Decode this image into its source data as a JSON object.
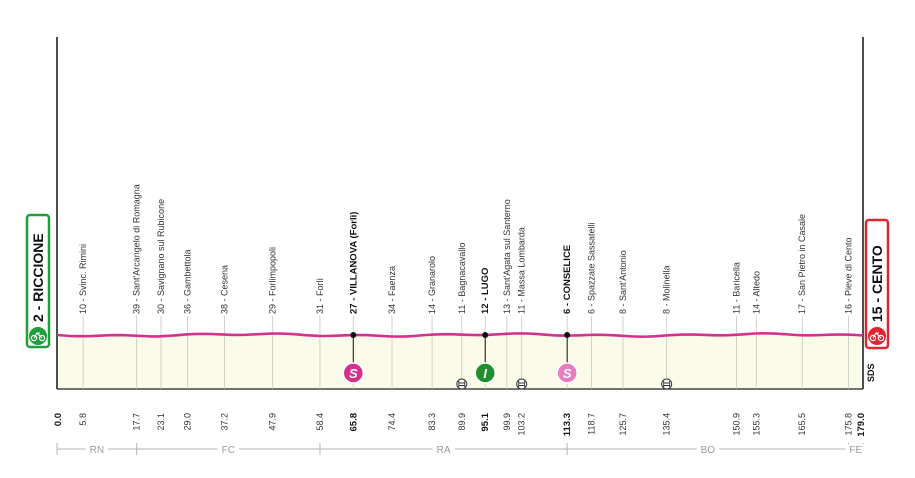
{
  "chart_data": {
    "type": "area",
    "x_unit": "km",
    "total_km": 179.0,
    "start": {
      "name": "2 - RICCIONE",
      "km": "0.0"
    },
    "finish": {
      "name": "15 - CENTO",
      "km": "179.0"
    },
    "profile_altitude_note": "flat stage",
    "locations": [
      {
        "km": 5.8,
        "km_label": "5.8",
        "label": "10 - Svinc. Rimini",
        "bold": false
      },
      {
        "km": 17.7,
        "km_label": "17.7",
        "label": "39 - Sant'Arcangelo di Romagna",
        "bold": false
      },
      {
        "km": 23.1,
        "km_label": "23.1",
        "label": "30 - Savignano sul Rubicone",
        "bold": false
      },
      {
        "km": 29.0,
        "km_label": "29.0",
        "label": "36 - Gambettola",
        "bold": false
      },
      {
        "km": 37.2,
        "km_label": "37.2",
        "label": "38 - Cesena",
        "bold": false
      },
      {
        "km": 47.9,
        "km_label": "47.9",
        "label": "29 - Forlimpopoli",
        "bold": false
      },
      {
        "km": 58.4,
        "km_label": "58.4",
        "label": "31 - Forlì",
        "bold": false
      },
      {
        "km": 65.8,
        "km_label": "65.8",
        "label": "27 - VILLANOVA (Forlì)",
        "bold": true
      },
      {
        "km": 74.4,
        "km_label": "74.4",
        "label": "34 - Faenza",
        "bold": false
      },
      {
        "km": 83.3,
        "km_label": "83.3",
        "label": "14 - Granarolo",
        "bold": false
      },
      {
        "km": 89.9,
        "km_label": "89.9",
        "label": "11 - Bagnacavallo",
        "bold": false
      },
      {
        "km": 95.1,
        "km_label": "95.1",
        "label": "12 - LUGO",
        "bold": true
      },
      {
        "km": 99.9,
        "km_label": "99.9",
        "label": "13 - Sant'Agata sul Santerno",
        "bold": false
      },
      {
        "km": 103.2,
        "km_label": "103.2",
        "label": "11 - Massa Lombarda",
        "bold": false
      },
      {
        "km": 113.3,
        "km_label": "113.3",
        "label": "6 - CONSELICE",
        "bold": true
      },
      {
        "km": 118.7,
        "km_label": "118.7",
        "label": "6 - Spazzate Sassatelli",
        "bold": false
      },
      {
        "km": 125.7,
        "km_label": "125.7",
        "label": "8 - Sant'Antonio",
        "bold": false
      },
      {
        "km": 135.4,
        "km_label": "135.4",
        "label": "8 - Molinella",
        "bold": false
      },
      {
        "km": 150.9,
        "km_label": "150.9",
        "label": "11 - Baricella",
        "bold": false
      },
      {
        "km": 155.3,
        "km_label": "155.3",
        "label": "14 - Altedo",
        "bold": false
      },
      {
        "km": 165.5,
        "km_label": "165.5",
        "label": "17 - San Pietro in Casale",
        "bold": false
      },
      {
        "km": 175.8,
        "km_label": "175.8",
        "label": "16 - Pieve di Cento",
        "bold": false
      }
    ],
    "markers": [
      {
        "type": "sprint",
        "km": 65.8,
        "glyph": "S",
        "color": "#d6308f"
      },
      {
        "type": "intermediate",
        "km": 95.1,
        "glyph": "I",
        "color": "#1f8f2f"
      },
      {
        "type": "sprint",
        "km": 113.3,
        "glyph": "S",
        "color": "#e87cc0"
      }
    ],
    "rail_crossings_km": [
      89.9,
      103.2,
      135.4
    ],
    "provinces": [
      {
        "name": "RN",
        "from": 0,
        "to": 17.7
      },
      {
        "name": "FC",
        "from": 17.7,
        "to": 58.4
      },
      {
        "name": "RA",
        "from": 58.4,
        "to": 113.3
      },
      {
        "name": "BO",
        "from": 113.3,
        "to": 175.8
      },
      {
        "name": "FE",
        "from": 175.8,
        "to": 179.0
      }
    ],
    "watermark": "SDS"
  },
  "colors": {
    "profile_line": "#d6308f",
    "profile_fill": "#fbfbe9",
    "start_badge": "#1f9e3a",
    "finish_badge": "#e0242f",
    "axis": "#333333",
    "province_line": "#b5b5b5"
  }
}
